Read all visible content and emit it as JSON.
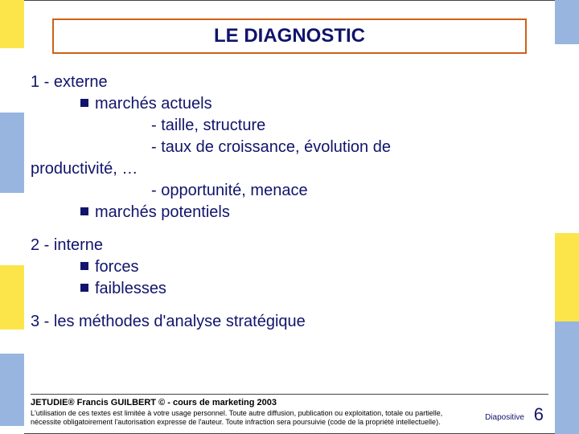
{
  "colors": {
    "brand_text": "#11146b",
    "title_border": "#d06016",
    "stripe_yellow": "#fce54a",
    "stripe_blue": "#97b5df",
    "background": "#ffffff"
  },
  "typography": {
    "title_fontsize": 24,
    "body_fontsize": 20,
    "footer_title_fontsize": 11,
    "footer_legal_fontsize": 9,
    "pagenum_fontsize": 22
  },
  "title": "LE DIAGNOSTIC",
  "lines": [
    {
      "text": "1 - externe",
      "indent": 0,
      "bullet": false
    },
    {
      "text": "marchés actuels",
      "indent": 1,
      "bullet": true
    },
    {
      "text": "- taille, structure",
      "indent": 2,
      "bullet": false
    },
    {
      "text": "- taux de croissance, évolution de",
      "indent": 2,
      "bullet": false
    },
    {
      "text": "productivité, …",
      "indent": 0,
      "bullet": false
    },
    {
      "text": "- opportunité, menace",
      "indent": 2,
      "bullet": false
    },
    {
      "text": "marchés potentiels",
      "indent": 1,
      "bullet": true
    },
    {
      "text": "2 - interne",
      "indent": 0,
      "bullet": false,
      "gap": true
    },
    {
      "text": "forces",
      "indent": 1,
      "bullet": true
    },
    {
      "text": "faiblesses",
      "indent": 1,
      "bullet": true
    },
    {
      "text": "3 - les méthodes d'analyse stratégique",
      "indent": 0,
      "bullet": false,
      "gap": true
    }
  ],
  "footer": {
    "title": "JETUDIE® Francis GUILBERT © - cours de marketing 2003",
    "legal": "L'utilisation de ces textes est limitée à votre usage personnel. Toute autre diffusion, publication ou exploitation, totale ou partielle, nécessite obligatoirement l'autorisation expresse de l'auteur. Toute infraction sera poursuivie (code de la propriété intellectuelle).",
    "page_label": "Diapositive",
    "page_number": "6"
  }
}
